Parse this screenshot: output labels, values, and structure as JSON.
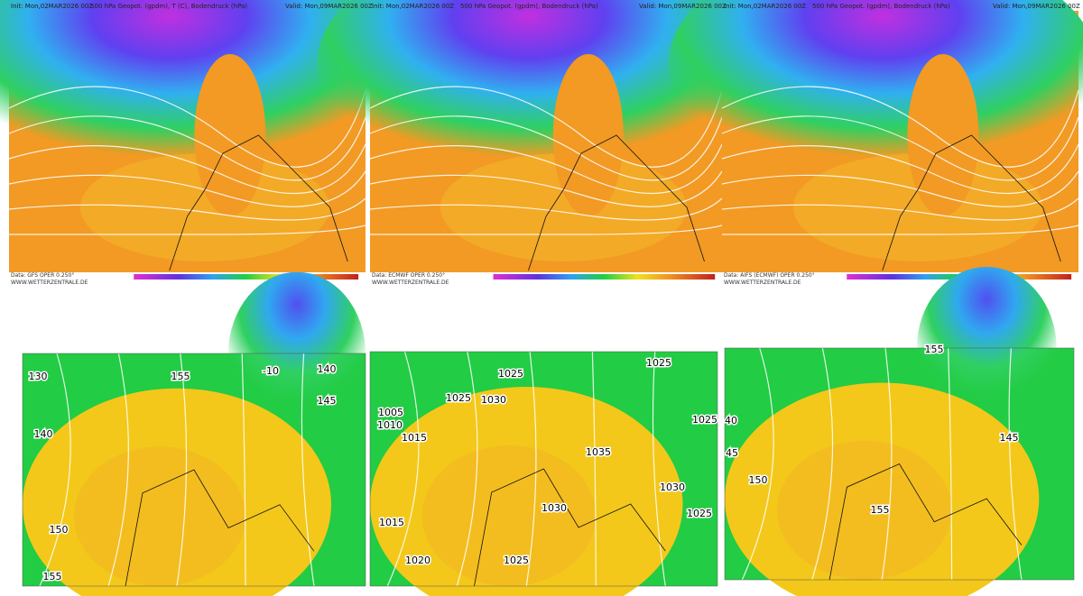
{
  "top_panels": [
    {
      "init": "Init: Mon,02MAR2026 00Z",
      "title": "500 hPa Geopot. (gpdm), T (C), Bodendruck (hPa)",
      "valid": "Valid: Mon,09MAR2026 00Z",
      "data_source": "Data: GFS OPER 0.250°",
      "website": "WWW.WETTERZENTRALE.DE"
    },
    {
      "init": "Init: Mon,02MAR2026 00Z",
      "title": "500 hPa Geopot. (gpdm), Bodendruck (hPa)",
      "valid": "Valid: Mon,09MAR2026 00Z",
      "data_source": "Data: ECMWF OPER 0.250°",
      "website": "WWW.WETTERZENTRALE.DE"
    },
    {
      "init": "Init: Mon,02MAR2026 00Z",
      "title": "500 hPa Geopot. (gpdm), Bodendruck (hPa)",
      "valid": "Valid: Mon,09MAR2026 00Z",
      "data_source": "Data: AIFS (ECMWF) OPER 0.250°",
      "website": "WWW.WETTERZENTRALE.DE"
    }
  ],
  "bottom_panels": [
    {
      "labels": [
        "130",
        "155",
        "140",
        "145",
        "140",
        "150",
        "155",
        "-10"
      ]
    },
    {
      "labels": [
        "1025",
        "1025",
        "1025",
        "1030",
        "1005",
        "1010",
        "1015",
        "1025",
        "1035",
        "1030",
        "1030",
        "1025",
        "1015",
        "1020",
        "1025"
      ]
    },
    {
      "labels": [
        "40",
        "45",
        "150",
        "155",
        "145",
        "155"
      ]
    }
  ]
}
